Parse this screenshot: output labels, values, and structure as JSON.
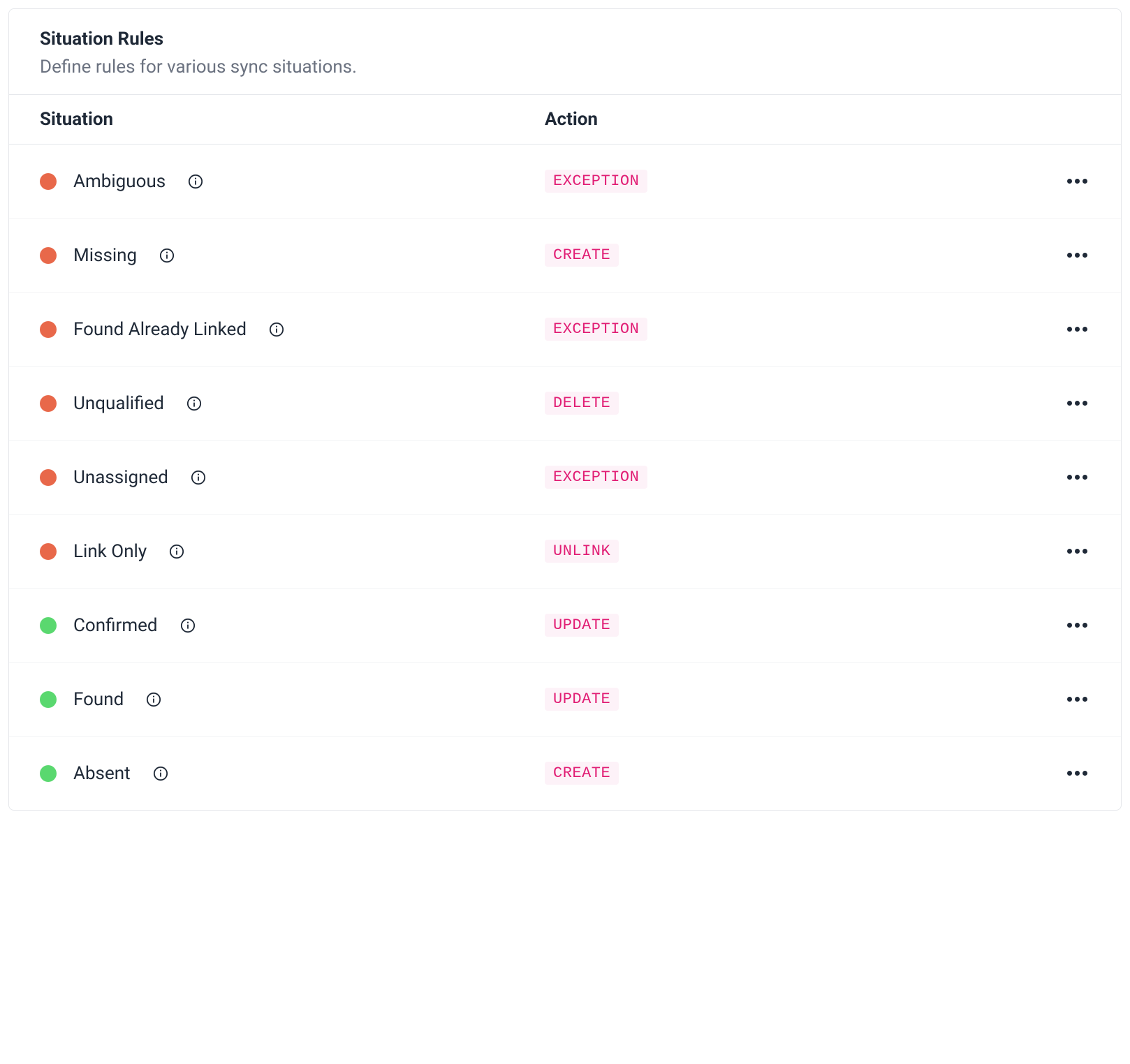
{
  "header": {
    "title": "Situation Rules",
    "subtitle": "Define rules for various sync situations."
  },
  "columns": {
    "situation": "Situation",
    "action": "Action"
  },
  "colors": {
    "red_dot": "#e8684a",
    "green_dot": "#5ad86f",
    "badge_text": "#e11d74",
    "badge_bg": "#fdf2f8",
    "border": "#e5e7eb",
    "row_border": "#f3f4f6",
    "text_primary": "#1f2937",
    "text_secondary": "#6b7280"
  },
  "rows": [
    {
      "status": "red",
      "label": "Ambiguous",
      "action": "EXCEPTION"
    },
    {
      "status": "red",
      "label": "Missing",
      "action": "CREATE"
    },
    {
      "status": "red",
      "label": "Found Already Linked",
      "action": "EXCEPTION"
    },
    {
      "status": "red",
      "label": "Unqualified",
      "action": "DELETE"
    },
    {
      "status": "red",
      "label": "Unassigned",
      "action": "EXCEPTION"
    },
    {
      "status": "red",
      "label": "Link Only",
      "action": "UNLINK"
    },
    {
      "status": "green",
      "label": "Confirmed",
      "action": "UPDATE"
    },
    {
      "status": "green",
      "label": "Found",
      "action": "UPDATE"
    },
    {
      "status": "green",
      "label": "Absent",
      "action": "CREATE"
    }
  ]
}
